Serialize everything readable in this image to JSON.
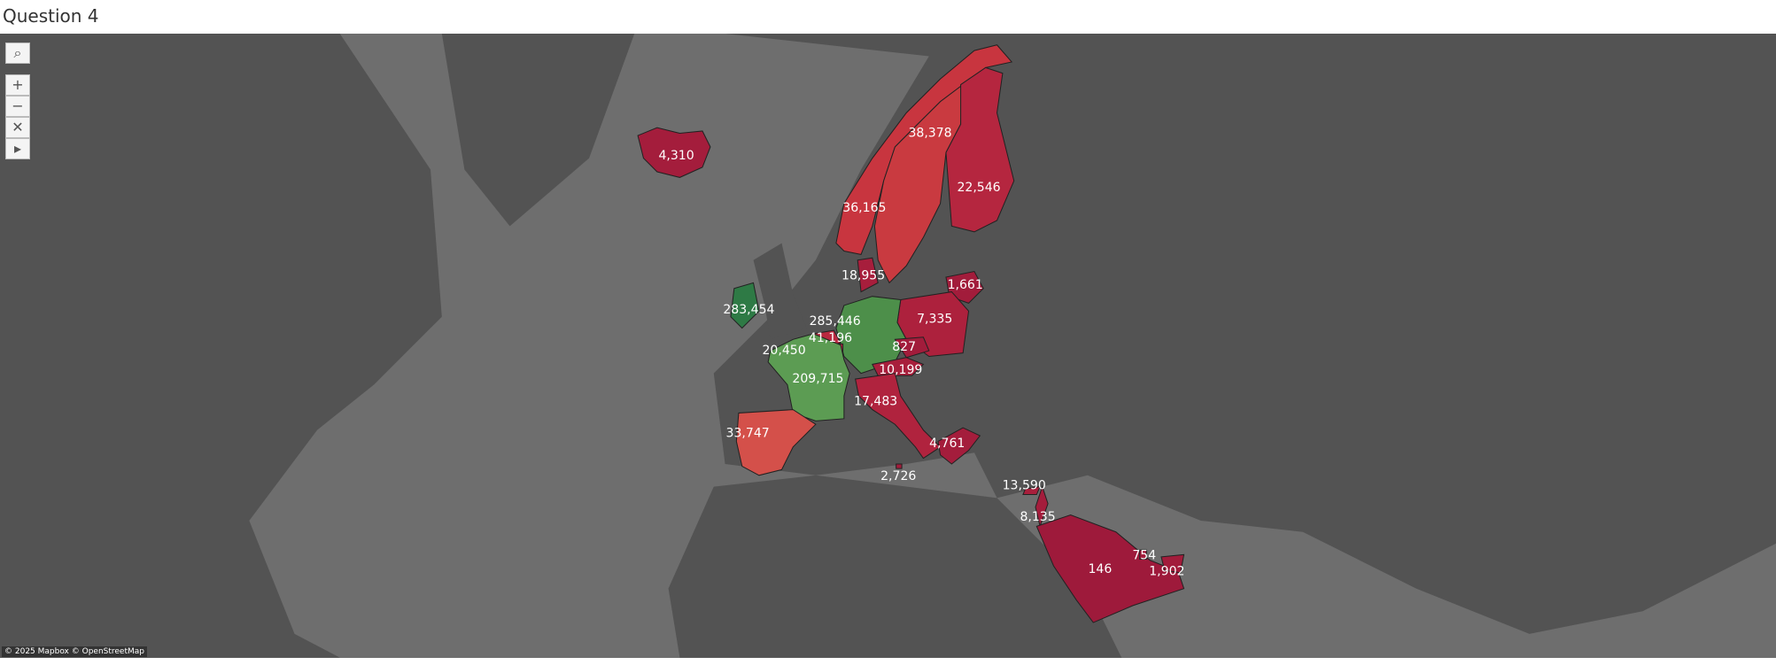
{
  "title": "Question 4",
  "attribution": "© 2025 Mapbox © OpenStreetMap",
  "regions": [
    {
      "label": "4,310",
      "color": "#a41d3c"
    },
    {
      "label": "36,165",
      "color": "#c8353f"
    },
    {
      "label": "38,378",
      "color": "#c93a40"
    },
    {
      "label": "22,546",
      "color": "#b5263f"
    },
    {
      "label": "18,955",
      "color": "#a71e3c"
    },
    {
      "label": "1,661",
      "color": "#a21c3b"
    },
    {
      "label": "7,335",
      "color": "#ad213d"
    },
    {
      "label": "283,454",
      "color": "#2e7a45"
    },
    {
      "label": "285,446",
      "color": "#4d8f4a"
    },
    {
      "label": "41,196",
      "color": "#b8293f"
    },
    {
      "label": "20,450",
      "color": "#b0233e"
    },
    {
      "label": "209,715",
      "color": "#5c9c53"
    },
    {
      "label": "827",
      "color": "#a21c3b"
    },
    {
      "label": "10,199",
      "color": "#a81f3c"
    },
    {
      "label": "17,483",
      "color": "#b0233e"
    },
    {
      "label": "33,747",
      "color": "#d4504a"
    },
    {
      "label": "4,761",
      "color": "#a41d3c"
    },
    {
      "label": "2,726",
      "color": "#a21c3b"
    },
    {
      "label": "13,590",
      "color": "#a81f3c"
    },
    {
      "label": "8,135",
      "color": "#a41d3c"
    },
    {
      "label": "146",
      "color": "#9e1a3b"
    },
    {
      "label": "754",
      "color": "#a21c3b"
    },
    {
      "label": "1,902",
      "color": "#a21c3b"
    }
  ]
}
